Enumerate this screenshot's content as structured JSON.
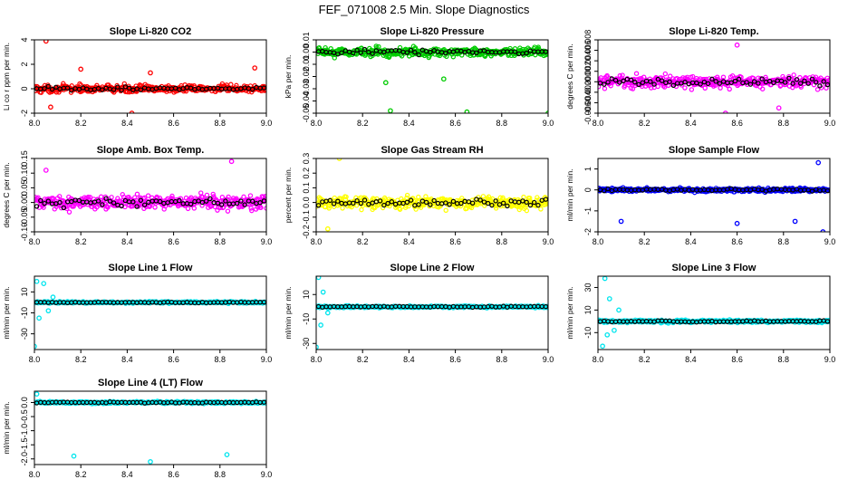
{
  "title": "FEF_071008  2.5 Min. Slope Diagnostics",
  "chart_data": [
    {
      "type": "scatter",
      "title": "Slope Li-820 CO2",
      "ylabel": "Li co r ppm per min.",
      "color": "#ff0000",
      "xlim": [
        8.0,
        9.0
      ],
      "ylim": [
        -2,
        4
      ],
      "xticks": [
        "8.0",
        "8.2",
        "8.4",
        "8.6",
        "8.8",
        "9.0"
      ],
      "yticks": [
        "-2",
        "0",
        "2",
        "4"
      ],
      "spread": 0.5,
      "outliers": [
        [
          8.05,
          3.9
        ],
        [
          8.07,
          -1.5
        ],
        [
          8.42,
          -2.0
        ],
        [
          8.95,
          1.7
        ],
        [
          8.2,
          1.6
        ],
        [
          8.5,
          1.3
        ]
      ]
    },
    {
      "type": "scatter",
      "title": "Slope Li-820 Pressure",
      "ylabel": "kPa per min.",
      "color": "#00cc00",
      "xlim": [
        8.0,
        9.0
      ],
      "ylim": [
        -0.05,
        0.01
      ],
      "xticks": [
        "8.0",
        "8.2",
        "8.4",
        "8.6",
        "8.8",
        "9.0"
      ],
      "yticks": [
        "-0.05",
        "-0.04",
        "-0.03",
        "-0.02",
        "-0.01",
        "0.00",
        "0.01"
      ],
      "spread": 0.006,
      "outliers": [
        [
          8.32,
          -0.048
        ],
        [
          8.65,
          -0.049
        ],
        [
          9.0,
          -0.05
        ],
        [
          8.3,
          -0.025
        ],
        [
          8.55,
          -0.022
        ]
      ]
    },
    {
      "type": "scatter",
      "title": "Slope Li-820 Temp.",
      "ylabel": "degrees C per min.",
      "color": "#ff00ff",
      "xlim": [
        8.0,
        9.0
      ],
      "ylim": [
        -0.006,
        0.008
      ],
      "xticks": [
        "8.0",
        "8.2",
        "8.4",
        "8.6",
        "8.8",
        "9.0"
      ],
      "yticks": [
        "-0.006",
        "-0.004",
        "-0.002",
        "0.000",
        "0.002",
        "0.004",
        "0.006",
        "0.008"
      ],
      "spread": 0.002,
      "outliers": [
        [
          8.6,
          0.007
        ],
        [
          8.55,
          -0.006
        ],
        [
          8.78,
          -0.005
        ]
      ]
    },
    {
      "type": "scatter",
      "title": "Slope Amb. Box Temp.",
      "ylabel": "degrees C per min.",
      "color": "#ff00ff",
      "xlim": [
        8.0,
        9.0
      ],
      "ylim": [
        -0.1,
        0.15
      ],
      "xticks": [
        "8.0",
        "8.2",
        "8.4",
        "8.6",
        "8.8",
        "9.0"
      ],
      "yticks": [
        "-0.10",
        "-0.05",
        "0.00",
        "0.05",
        "0.10",
        "0.15"
      ],
      "spread": 0.04,
      "outliers": [
        [
          8.85,
          0.14
        ],
        [
          8.05,
          0.11
        ]
      ]
    },
    {
      "type": "scatter",
      "title": "Slope Gas Stream RH",
      "ylabel": "percent per min.",
      "color": "#ffff00",
      "xlim": [
        8.0,
        9.0
      ],
      "ylim": [
        -0.2,
        0.3
      ],
      "xticks": [
        "8.0",
        "8.2",
        "8.4",
        "8.6",
        "8.8",
        "9.0"
      ],
      "yticks": [
        "-0.2",
        "-0.1",
        "0.0",
        "0.1",
        "0.2",
        "0.3"
      ],
      "spread": 0.07,
      "outliers": [
        [
          8.1,
          0.3
        ],
        [
          8.05,
          -0.18
        ]
      ]
    },
    {
      "type": "scatter",
      "title": "Slope Sample Flow",
      "ylabel": "ml/min per min.",
      "color": "#0000ff",
      "xlim": [
        8.0,
        9.0
      ],
      "ylim": [
        -2,
        1.5
      ],
      "xticks": [
        "8.0",
        "8.2",
        "8.4",
        "8.6",
        "8.8",
        "9.0"
      ],
      "yticks": [
        "-2",
        "-1",
        "0",
        "1"
      ],
      "spread": 0.15,
      "outliers": [
        [
          8.95,
          1.3
        ],
        [
          8.1,
          -1.5
        ],
        [
          8.6,
          -1.6
        ],
        [
          8.97,
          -2.0
        ],
        [
          8.85,
          -1.5
        ]
      ]
    },
    {
      "type": "scatter",
      "title": "Slope Line 1 Flow",
      "ylabel": "ml/min per min.",
      "color": "#00e5ee",
      "xlim": [
        8.0,
        9.0
      ],
      "ylim": [
        -45,
        25
      ],
      "xticks": [
        "8.0",
        "8.2",
        "8.4",
        "8.6",
        "8.8",
        "9.0"
      ],
      "yticks": [
        "-30",
        "-10",
        "10"
      ],
      "spread": 1.5,
      "outliers": [
        [
          8.01,
          20
        ],
        [
          8.0,
          -42
        ],
        [
          8.04,
          18
        ],
        [
          8.02,
          -15
        ],
        [
          8.06,
          -8
        ],
        [
          8.08,
          5
        ]
      ]
    },
    {
      "type": "scatter",
      "title": "Slope Line 2 Flow",
      "ylabel": "ml/min per min.",
      "color": "#00e5ee",
      "xlim": [
        8.0,
        9.0
      ],
      "ylim": [
        -35,
        25
      ],
      "xticks": [
        "8.0",
        "8.2",
        "8.4",
        "8.6",
        "8.8",
        "9.0"
      ],
      "yticks": [
        "-30",
        "-10",
        "10"
      ],
      "spread": 1.5,
      "outliers": [
        [
          8.01,
          24
        ],
        [
          8.0,
          -33
        ],
        [
          8.02,
          -15
        ],
        [
          8.03,
          12
        ],
        [
          8.05,
          -5
        ]
      ]
    },
    {
      "type": "scatter",
      "title": "Slope Line 3 Flow",
      "ylabel": "ml/min per min.",
      "color": "#00e5ee",
      "xlim": [
        8.0,
        9.0
      ],
      "ylim": [
        -25,
        40
      ],
      "xticks": [
        "8.0",
        "8.2",
        "8.4",
        "8.6",
        "8.8",
        "9.0"
      ],
      "yticks": [
        "-10",
        "10",
        "30"
      ],
      "spread": 2,
      "outliers": [
        [
          8.03,
          38
        ],
        [
          8.02,
          -22
        ],
        [
          8.05,
          20
        ],
        [
          8.04,
          -12
        ],
        [
          8.07,
          -8
        ],
        [
          8.09,
          10
        ]
      ]
    },
    {
      "type": "scatter",
      "title": "Slope Line 4 (LT) Flow",
      "ylabel": "ml/min per min.",
      "color": "#00e5ee",
      "xlim": [
        8.0,
        9.0
      ],
      "ylim": [
        -2.2,
        0.4
      ],
      "xticks": [
        "8.0",
        "8.2",
        "8.4",
        "8.6",
        "8.8",
        "9.0"
      ],
      "yticks": [
        "-2.0",
        "-1.5",
        "-1.0",
        "-0.5",
        "0.0"
      ],
      "spread": 0.06,
      "outliers": [
        [
          8.17,
          -1.9
        ],
        [
          8.5,
          -2.1
        ],
        [
          8.83,
          -1.85
        ],
        [
          8.01,
          0.3
        ]
      ]
    }
  ]
}
